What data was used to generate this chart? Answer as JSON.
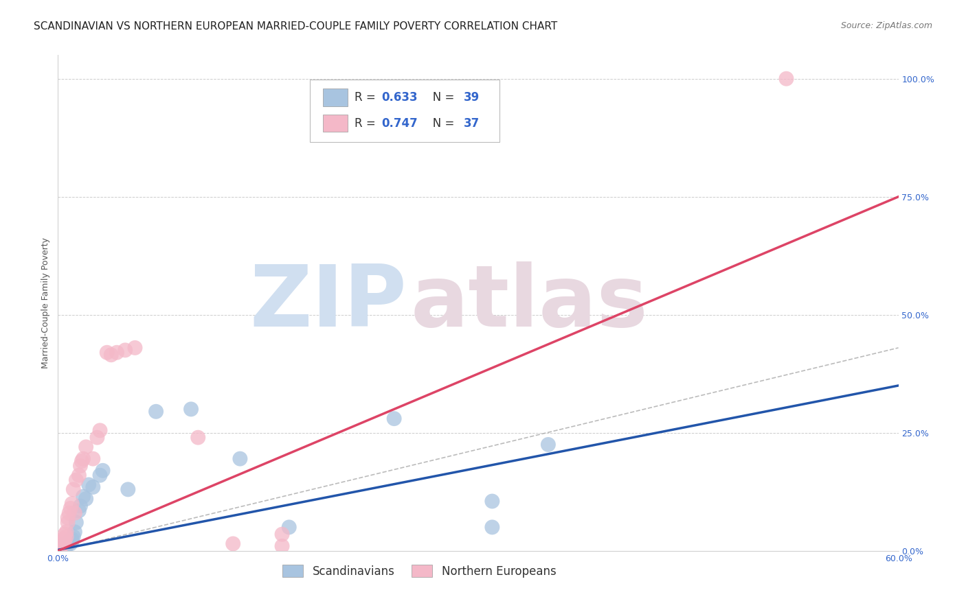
{
  "title": "SCANDINAVIAN VS NORTHERN EUROPEAN MARRIED-COUPLE FAMILY POVERTY CORRELATION CHART",
  "source": "Source: ZipAtlas.com",
  "ylabel": "Married-Couple Family Poverty",
  "x_min": 0.0,
  "x_max": 0.6,
  "y_min": 0.0,
  "y_max": 1.05,
  "legend_label_scand": "Scandinavians",
  "legend_label_north": "Northern Europeans",
  "r_scand_val": "0.633",
  "n_scand_val": "39",
  "r_north_val": "0.747",
  "n_north_val": "37",
  "scatter_color_scand": "#a8c4e0",
  "scatter_color_north": "#f4b8c8",
  "line_color_scand": "#2255aa",
  "line_color_north": "#dd4466",
  "line_color_diagonal": "#aaaaaa",
  "background_color": "#ffffff",
  "watermark_zip_color": "#d0dff0",
  "watermark_atlas_color": "#e8d8e0",
  "title_fontsize": 11,
  "source_fontsize": 9,
  "axis_label_fontsize": 9,
  "tick_fontsize": 9,
  "legend_fontsize": 11,
  "tick_color": "#3366cc",
  "text_color": "#333333",
  "scand_line_x0": 0.0,
  "scand_line_y0": 0.002,
  "scand_line_x1": 0.6,
  "scand_line_y1": 0.35,
  "north_line_x0": 0.0,
  "north_line_y0": 0.0,
  "north_line_x1": 0.6,
  "north_line_y1": 0.75,
  "diag_line_x0": 0.0,
  "diag_line_y0": 0.0,
  "diag_line_x1": 0.6,
  "diag_line_y1": 0.43,
  "scand_points_x": [
    0.001,
    0.002,
    0.002,
    0.003,
    0.003,
    0.004,
    0.004,
    0.005,
    0.005,
    0.006,
    0.006,
    0.007,
    0.007,
    0.008,
    0.008,
    0.009,
    0.009,
    0.01,
    0.01,
    0.011,
    0.012,
    0.013,
    0.015,
    0.016,
    0.018,
    0.02,
    0.022,
    0.025,
    0.03,
    0.032,
    0.05,
    0.07,
    0.095,
    0.13,
    0.165,
    0.24,
    0.31,
    0.31,
    0.35
  ],
  "scand_points_y": [
    0.005,
    0.004,
    0.008,
    0.006,
    0.01,
    0.007,
    0.012,
    0.008,
    0.015,
    0.01,
    0.012,
    0.014,
    0.016,
    0.018,
    0.02,
    0.015,
    0.022,
    0.02,
    0.025,
    0.03,
    0.04,
    0.06,
    0.085,
    0.095,
    0.115,
    0.11,
    0.14,
    0.135,
    0.16,
    0.17,
    0.13,
    0.295,
    0.3,
    0.195,
    0.05,
    0.28,
    0.05,
    0.105,
    0.225
  ],
  "north_points_x": [
    0.001,
    0.002,
    0.002,
    0.003,
    0.003,
    0.004,
    0.004,
    0.005,
    0.005,
    0.006,
    0.006,
    0.007,
    0.007,
    0.008,
    0.009,
    0.01,
    0.011,
    0.012,
    0.013,
    0.015,
    0.016,
    0.017,
    0.018,
    0.02,
    0.025,
    0.028,
    0.03,
    0.035,
    0.038,
    0.042,
    0.048,
    0.055,
    0.1,
    0.125,
    0.16,
    0.16,
    0.52
  ],
  "north_points_y": [
    0.01,
    0.008,
    0.015,
    0.012,
    0.018,
    0.02,
    0.025,
    0.022,
    0.035,
    0.03,
    0.04,
    0.06,
    0.07,
    0.08,
    0.09,
    0.1,
    0.13,
    0.08,
    0.15,
    0.16,
    0.18,
    0.19,
    0.195,
    0.22,
    0.195,
    0.24,
    0.255,
    0.42,
    0.415,
    0.42,
    0.425,
    0.43,
    0.24,
    0.015,
    0.01,
    0.035,
    1.0
  ]
}
